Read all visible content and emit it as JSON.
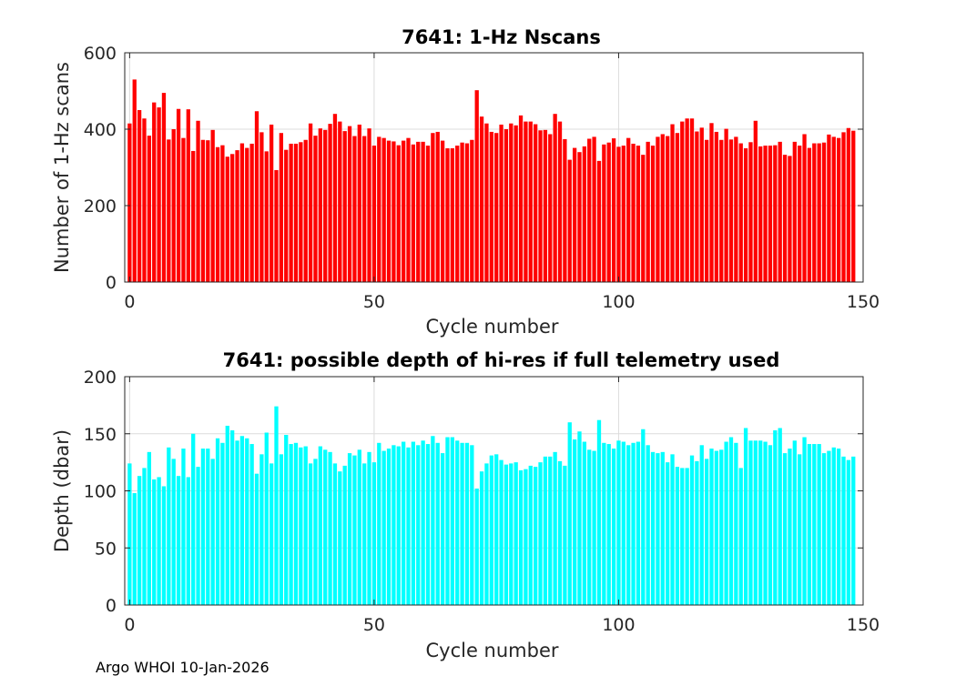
{
  "footer": "Argo WHOI 10-Jan-2026",
  "colors": {
    "series1": "#ff0000",
    "series2": "#00ffff",
    "grid": "#dcdcdc",
    "axis": "#262626"
  },
  "chart_data": [
    {
      "type": "bar",
      "title": "7641: 1-Hz Nscans",
      "xlabel": "Cycle number",
      "ylabel": "Number of 1-Hz scans",
      "xlim": [
        -1,
        150
      ],
      "ylim": [
        0,
        600
      ],
      "xticks": [
        0,
        50,
        100,
        150
      ],
      "yticks": [
        0,
        200,
        400,
        600
      ],
      "x_start": 0,
      "values": [
        415,
        530,
        450,
        428,
        383,
        470,
        457,
        495,
        373,
        400,
        453,
        377,
        452,
        343,
        422,
        372,
        371,
        398,
        353,
        358,
        328,
        335,
        345,
        363,
        351,
        362,
        447,
        392,
        342,
        412,
        293,
        390,
        346,
        362,
        362,
        366,
        372,
        415,
        383,
        402,
        398,
        414,
        440,
        420,
        395,
        408,
        382,
        412,
        382,
        402,
        357,
        380,
        377,
        370,
        368,
        358,
        370,
        377,
        360,
        367,
        367,
        357,
        390,
        393,
        370,
        350,
        350,
        357,
        365,
        363,
        372,
        502,
        433,
        415,
        393,
        390,
        412,
        400,
        415,
        410,
        436,
        420,
        420,
        413,
        397,
        398,
        387,
        440,
        420,
        374,
        320,
        351,
        340,
        355,
        375,
        380,
        317,
        360,
        365,
        376,
        354,
        357,
        377,
        362,
        357,
        333,
        367,
        357,
        380,
        387,
        382,
        413,
        390,
        420,
        428,
        428,
        394,
        404,
        372,
        416,
        393,
        372,
        401,
        373,
        380,
        363,
        350,
        366,
        422,
        355,
        357,
        357,
        358,
        367,
        333,
        330,
        367,
        357,
        387,
        351,
        363,
        363,
        365,
        386,
        380,
        377,
        392,
        403,
        396
      ],
      "grid": true
    },
    {
      "type": "bar",
      "title": "7641: possible depth of hi-res if full telemetry used",
      "xlabel": "Cycle number",
      "ylabel": "Depth (dbar)",
      "xlim": [
        -1,
        150
      ],
      "ylim": [
        0,
        200
      ],
      "xticks": [
        0,
        50,
        100,
        150
      ],
      "yticks": [
        0,
        50,
        100,
        150,
        200
      ],
      "x_start": 0,
      "values": [
        124,
        98,
        113,
        120,
        134,
        110,
        112,
        104,
        138,
        128,
        113,
        137,
        112,
        150,
        121,
        137,
        137,
        128,
        146,
        142,
        157,
        153,
        144,
        148,
        146,
        141,
        115,
        132,
        151,
        124,
        174,
        132,
        149,
        141,
        142,
        138,
        139,
        124,
        128,
        139,
        136,
        134,
        124,
        117,
        122,
        133,
        131,
        136,
        124,
        134,
        125,
        142,
        135,
        137,
        140,
        139,
        143,
        138,
        143,
        140,
        144,
        141,
        148,
        142,
        133,
        147,
        147,
        144,
        142,
        142,
        140,
        102,
        117,
        124,
        131,
        132,
        127,
        123,
        124,
        125,
        118,
        119,
        122,
        121,
        125,
        130,
        130,
        134,
        126,
        122,
        160,
        145,
        152,
        143,
        136,
        135,
        162,
        142,
        141,
        137,
        144,
        143,
        140,
        142,
        143,
        154,
        140,
        134,
        133,
        134,
        125,
        132,
        121,
        120,
        120,
        131,
        126,
        140,
        128,
        137,
        135,
        136,
        143,
        147,
        142,
        120,
        155,
        144,
        144,
        144,
        143,
        140,
        153,
        155,
        133,
        137,
        144,
        132,
        147,
        141,
        141,
        141,
        133,
        135,
        138,
        137,
        130,
        127,
        130
      ]
    }
  ]
}
